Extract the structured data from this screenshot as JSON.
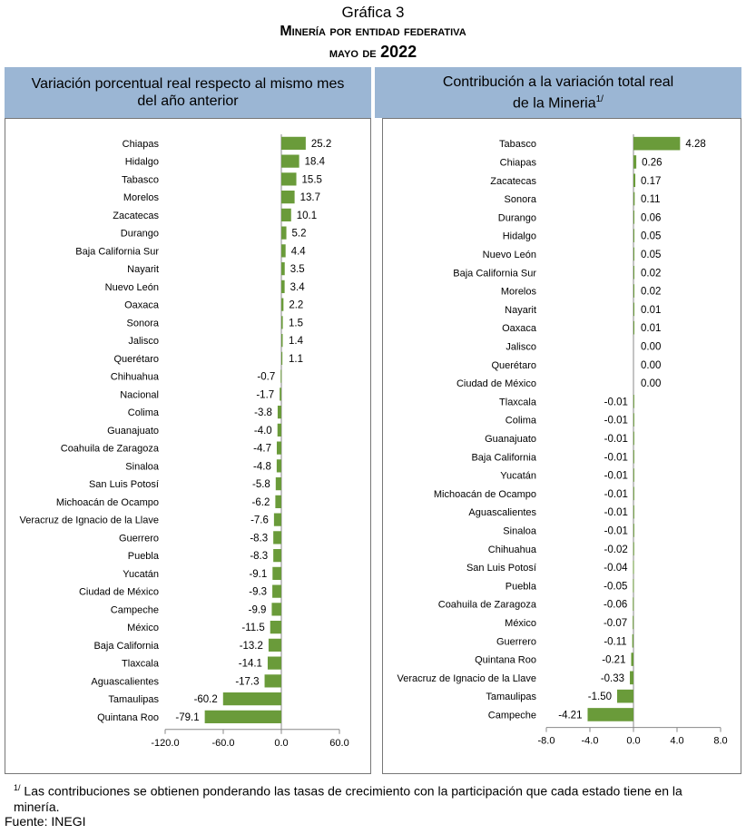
{
  "title": {
    "line1": "Gráfica 3",
    "line2": "Minería por entidad federativa",
    "line3_a": "mayo de ",
    "line3_b": "2022"
  },
  "colors": {
    "bar": "#6a9b3a",
    "header_bg": "#9bb6d4",
    "axis": "#888888"
  },
  "chart_data": [
    {
      "type": "bar",
      "orientation": "horizontal",
      "title": "Variación porcentual real respecto al mismo mes del año anterior",
      "title_lines": [
        "Variación porcentual real respecto al mismo mes",
        "del año anterior"
      ],
      "xlim": [
        -120,
        60
      ],
      "xticks": [
        -120,
        -60,
        0,
        60
      ],
      "xtick_labels": [
        "-120.0",
        "-60.0",
        "0.0",
        "60.0"
      ],
      "categories": [
        "Chiapas",
        "Hidalgo",
        "Tabasco",
        "Morelos",
        "Zacatecas",
        "Durango",
        "Baja California Sur",
        "Nayarit",
        "Nuevo León",
        "Oaxaca",
        "Sonora",
        "Jalisco",
        "Querétaro",
        "Chihuahua",
        "Nacional",
        "Colima",
        "Guanajuato",
        "Coahuila de Zaragoza",
        "Sinaloa",
        "San Luis Potosí",
        "Michoacán de Ocampo",
        "Veracruz de Ignacio de la Llave",
        "Guerrero",
        "Puebla",
        "Yucatán",
        "Ciudad de México",
        "Campeche",
        "México",
        "Baja California",
        "Tlaxcala",
        "Aguascalientes",
        "Tamaulipas",
        "Quintana Roo"
      ],
      "values": [
        25.2,
        18.4,
        15.5,
        13.7,
        10.1,
        5.2,
        4.4,
        3.5,
        3.4,
        2.2,
        1.5,
        1.4,
        1.1,
        -0.7,
        -1.7,
        -3.8,
        -4.0,
        -4.7,
        -4.8,
        -5.8,
        -6.2,
        -7.6,
        -8.3,
        -8.3,
        -9.1,
        -9.3,
        -9.9,
        -11.5,
        -13.2,
        -14.1,
        -17.3,
        -60.2,
        -79.1
      ],
      "labels": [
        "25.2",
        "18.4",
        "15.5",
        "13.7",
        "10.1",
        "5.2",
        "4.4",
        "3.5",
        "3.4",
        "2.2",
        "1.5",
        "1.4",
        "1.1",
        "-0.7",
        "-1.7",
        "-3.8",
        "-4.0",
        "-4.7",
        "-4.8",
        "-5.8",
        "-6.2",
        "-7.6",
        "-8.3",
        "-8.3",
        "-9.1",
        "-9.3",
        "-9.9",
        "-11.5",
        "-13.2",
        "-14.1",
        "-17.3",
        "-60.2",
        "-79.1"
      ]
    },
    {
      "type": "bar",
      "orientation": "horizontal",
      "title": "Contribución a la variación total real de la Mineria",
      "title_lines": [
        "Contribución a la variación total real",
        "de la Mineria"
      ],
      "title_sup": "1/",
      "xlim": [
        -8,
        8
      ],
      "xticks": [
        -8,
        -4,
        0,
        4,
        8
      ],
      "xtick_labels": [
        "-8.0",
        "-4.0",
        "0.0",
        "4.0",
        "8.0"
      ],
      "categories": [
        "Tabasco",
        "Chiapas",
        "Zacatecas",
        "Sonora",
        "Durango",
        "Hidalgo",
        "Nuevo León",
        "Baja California Sur",
        "Morelos",
        "Nayarit",
        "Oaxaca",
        "Jalisco",
        "Querétaro",
        "Ciudad de México",
        "Tlaxcala",
        "Colima",
        "Guanajuato",
        "Baja California",
        "Yucatán",
        "Michoacán de Ocampo",
        "Aguascalientes",
        "Sinaloa",
        "Chihuahua",
        "San Luis Potosí",
        "Puebla",
        "Coahuila de Zaragoza",
        "México",
        "Guerrero",
        "Quintana Roo",
        "Veracruz de Ignacio de la Llave",
        "Tamaulipas",
        "Campeche"
      ],
      "values": [
        4.28,
        0.26,
        0.17,
        0.11,
        0.06,
        0.05,
        0.05,
        0.02,
        0.02,
        0.01,
        0.01,
        0.0,
        0.0,
        0.0,
        -0.01,
        -0.01,
        -0.01,
        -0.01,
        -0.01,
        -0.01,
        -0.01,
        -0.01,
        -0.02,
        -0.04,
        -0.05,
        -0.06,
        -0.07,
        -0.11,
        -0.21,
        -0.33,
        -1.5,
        -4.21
      ],
      "labels": [
        "4.28",
        "0.26",
        "0.17",
        "0.11",
        "0.06",
        "0.05",
        "0.05",
        "0.02",
        "0.02",
        "0.01",
        "0.01",
        "0.00",
        "0.00",
        "0.00",
        "-0.01",
        "-0.01",
        "-0.01",
        "-0.01",
        "-0.01",
        "-0.01",
        "-0.01",
        "-0.01",
        "-0.02",
        "-0.04",
        "-0.05",
        "-0.06",
        "-0.07",
        "-0.11",
        "-0.21",
        "-0.33",
        "-1.50",
        "-4.21"
      ]
    }
  ],
  "footnote": {
    "mark": "1/",
    "text": " Las contribuciones se obtienen ponderando las tasas de crecimiento con la participación que cada estado tiene en la minería."
  },
  "source": "Fuente: INEGI"
}
